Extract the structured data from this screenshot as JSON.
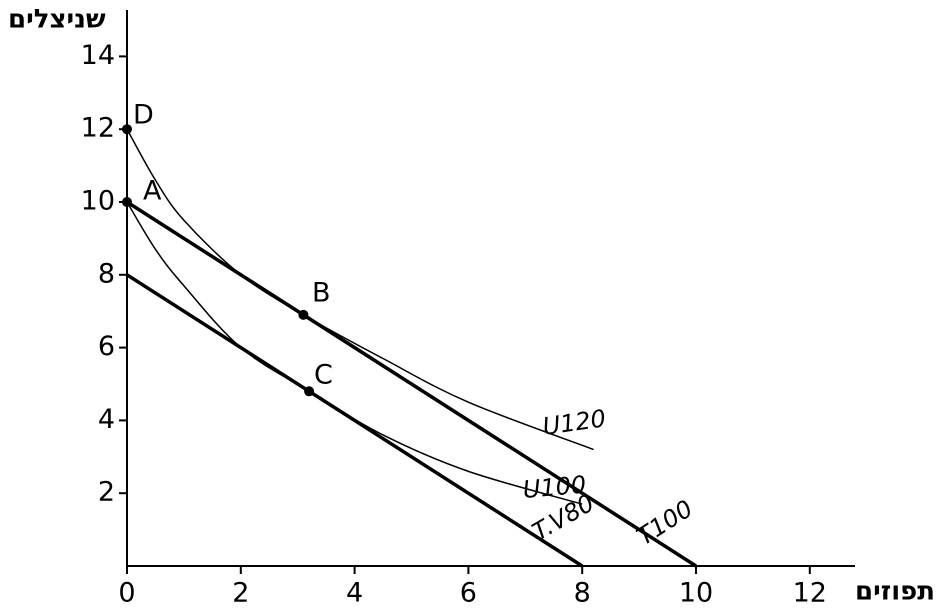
{
  "chart_data": {
    "type": "line",
    "x_label": "תפוזים",
    "y_label": "שניצלים",
    "xlim": [
      0,
      12.8
    ],
    "ylim": [
      0,
      15.3
    ],
    "xticks": [
      0,
      2,
      4,
      6,
      8,
      10,
      12
    ],
    "yticks": [
      2,
      4,
      6,
      8,
      10,
      12,
      14
    ],
    "color": "#000000",
    "series": [
      {
        "name": "T100",
        "x": [
          0,
          10
        ],
        "values": [
          10,
          0
        ]
      },
      {
        "name": "T.V80",
        "x": [
          0,
          8
        ],
        "values": [
          8,
          0
        ]
      },
      {
        "name": "U120",
        "x": [
          0,
          0.5,
          1,
          2,
          3.1,
          4.5,
          6,
          8.2
        ],
        "values": [
          12,
          10.6,
          9.5,
          8.0,
          6.9,
          5.7,
          4.5,
          3.2
        ]
      },
      {
        "name": "U100",
        "x": [
          0,
          0.5,
          1,
          2,
          3.2,
          4.5,
          6,
          8
        ],
        "values": [
          10,
          8.7,
          7.7,
          6.0,
          4.8,
          3.6,
          2.6,
          1.7
        ]
      }
    ],
    "points": [
      {
        "label": "D",
        "x": 0,
        "y": 12
      },
      {
        "label": "A",
        "x": 0,
        "y": 10
      },
      {
        "label": "B",
        "x": 3.1,
        "y": 6.9
      },
      {
        "label": "C",
        "x": 3.2,
        "y": 4.8
      }
    ]
  }
}
